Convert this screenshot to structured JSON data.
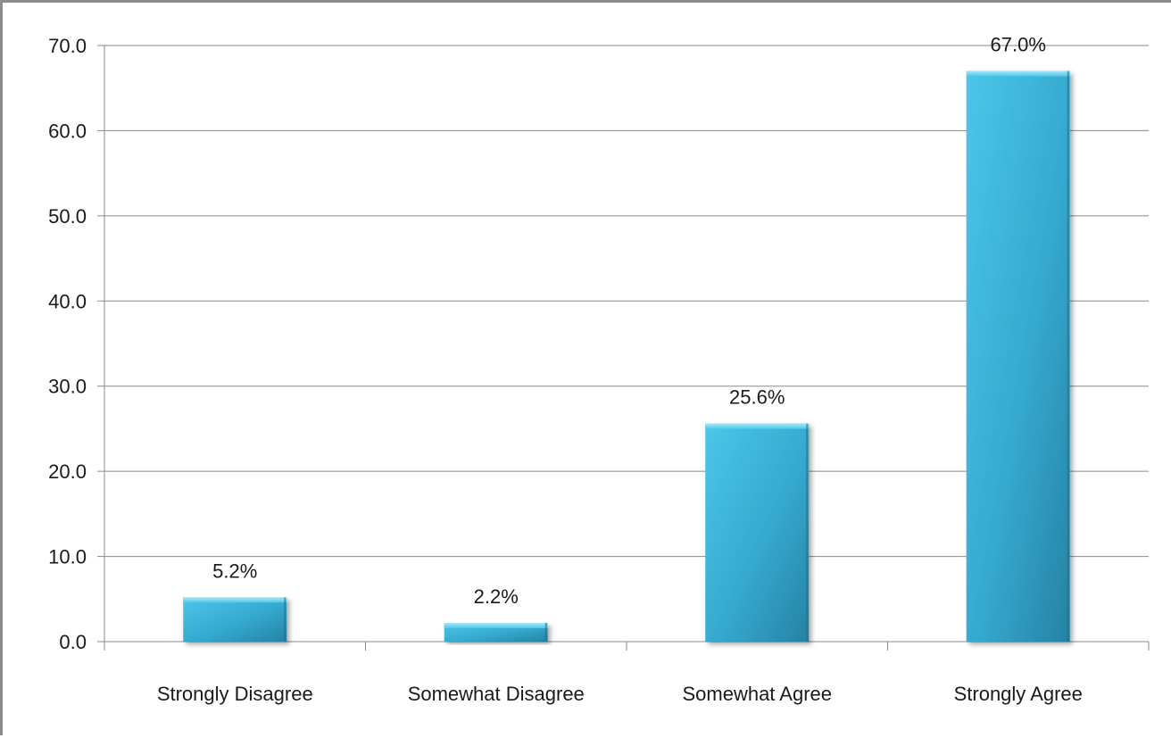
{
  "chart_data": {
    "type": "bar",
    "categories": [
      "Strongly Disagree",
      "Somewhat Disagree",
      "Somewhat Agree",
      "Strongly Agree"
    ],
    "values": [
      5.2,
      2.2,
      25.6,
      67.0
    ],
    "data_labels": [
      "5.2%",
      "2.2%",
      "25.6%",
      "67.0%"
    ],
    "ylim": [
      0,
      70
    ],
    "yticks": [
      0,
      10,
      20,
      30,
      40,
      50,
      60,
      70
    ],
    "ytick_labels": [
      "0.0",
      "10.0",
      "20.0",
      "30.0",
      "40.0",
      "50.0",
      "60.0",
      "70.0"
    ],
    "grid": true,
    "legend": "none",
    "title": "",
    "xlabel": "",
    "ylabel": "",
    "colors": {
      "bar_light": "#4cc6ea",
      "bar_mid": "#35a9cf",
      "bar_dark": "#2682a3",
      "bar_top": "#7dd9f3",
      "grid": "#8a8a8a"
    }
  }
}
